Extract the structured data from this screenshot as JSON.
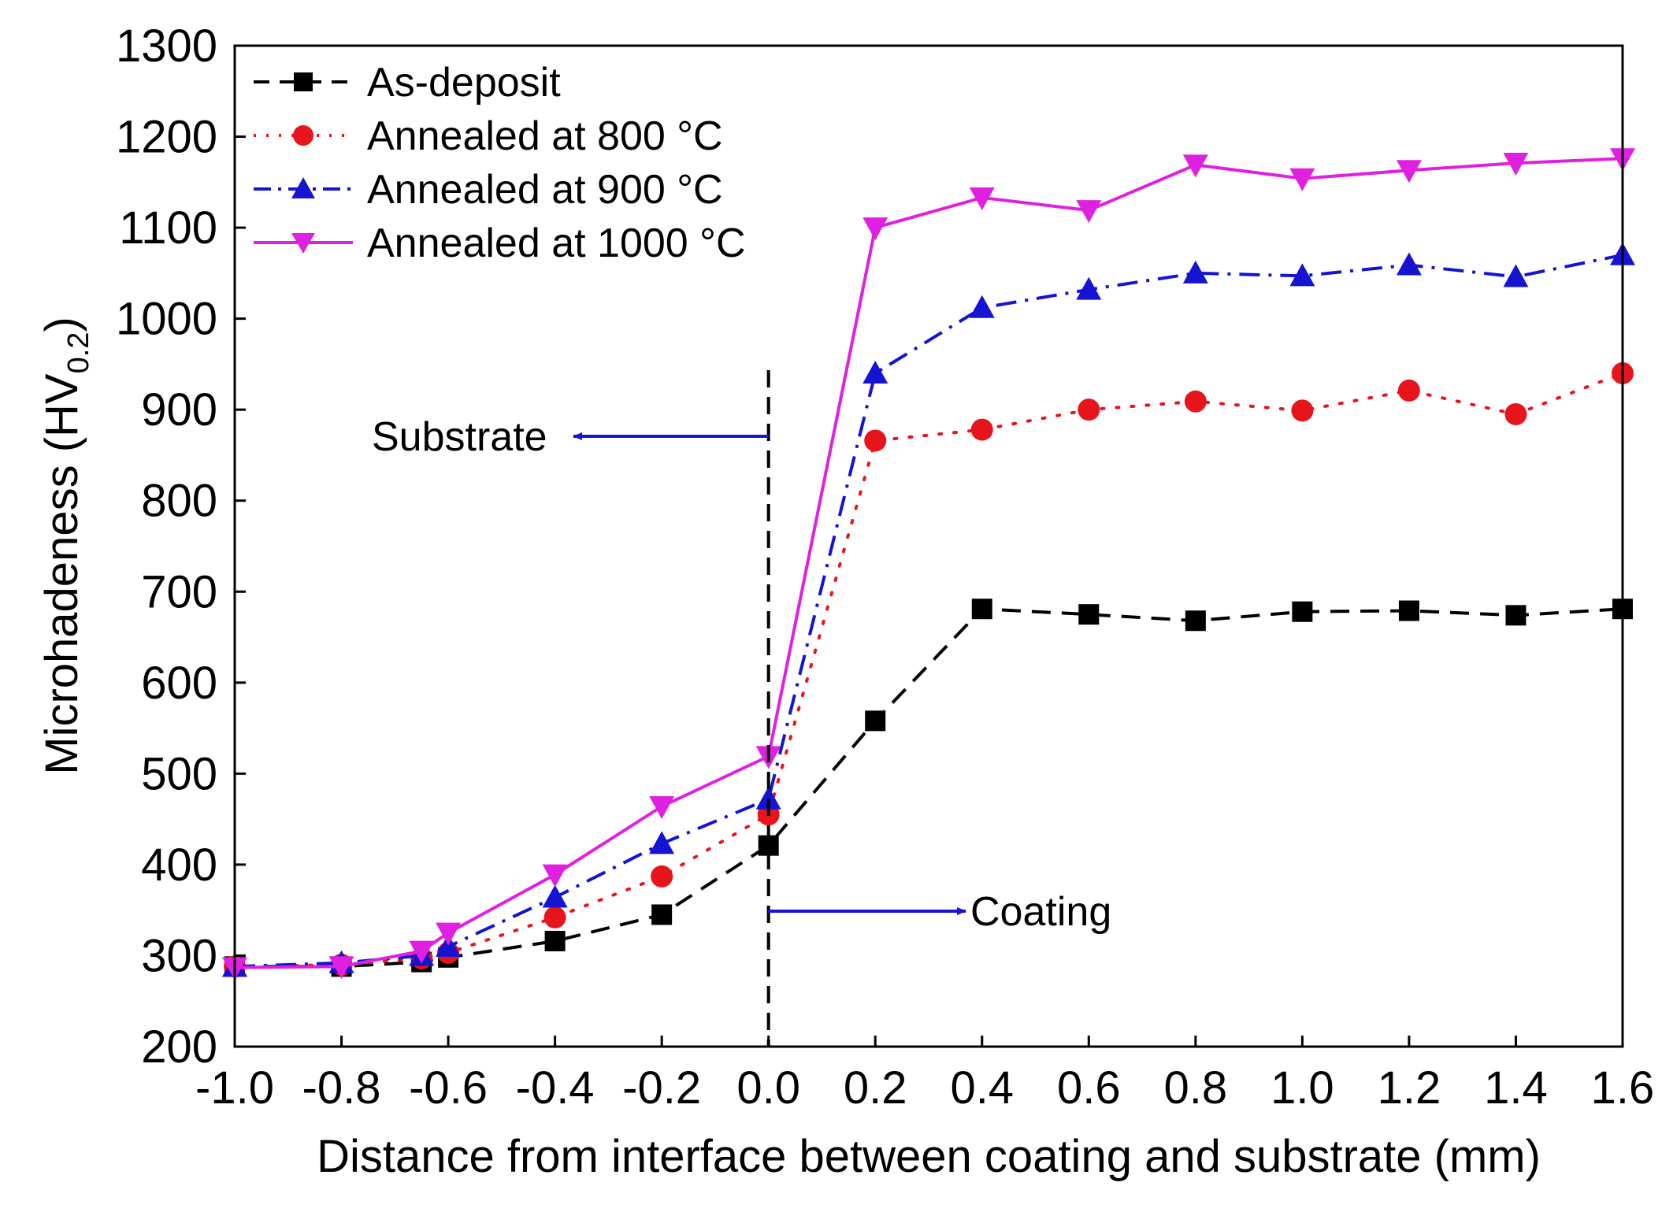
{
  "chart_data": {
    "type": "line",
    "title": "",
    "xlabel": "Distance from interface between coating and substrate (mm)",
    "ylabel": {
      "main": "Microhadeness (HV",
      "sub": "0.2",
      "close": ")"
    },
    "xlim": [
      -1.0,
      1.6
    ],
    "ylim": [
      200,
      1300
    ],
    "x_ticks": [
      -1.0,
      -0.8,
      -0.6,
      -0.4,
      -0.2,
      0.0,
      0.2,
      0.4,
      0.6,
      0.8,
      1.0,
      1.2,
      1.4,
      1.6
    ],
    "x_tick_labels": [
      "-1.0",
      "-0.8",
      "-0.6",
      "-0.4",
      "-0.2",
      "0.0",
      "0.2",
      "0.4",
      "0.6",
      "0.8",
      "1.0",
      "1.2",
      "1.4",
      "1.6"
    ],
    "y_ticks": [
      200,
      300,
      400,
      500,
      600,
      700,
      800,
      900,
      1000,
      1100,
      1200,
      1300
    ],
    "y_tick_labels": [
      "200",
      "300",
      "400",
      "500",
      "600",
      "700",
      "800",
      "900",
      "1000",
      "1100",
      "1200",
      "1300"
    ],
    "grid": false,
    "legend_position": "top-left",
    "series": [
      {
        "name": "As-deposit",
        "color": "#000000",
        "marker": "square",
        "line_style": "dash",
        "x": [
          -1.0,
          -0.8,
          -0.65,
          -0.6,
          -0.4,
          -0.2,
          0.0,
          0.2,
          0.4,
          0.6,
          0.8,
          1.0,
          1.2,
          1.4,
          1.6
        ],
        "y": [
          288,
          288,
          293,
          298,
          316,
          345,
          421,
          558,
          681,
          675,
          668,
          678,
          679,
          674,
          681
        ]
      },
      {
        "name": "Annealed at 800 °C",
        "color": "#e8141b",
        "marker": "circle",
        "line_style": "dot",
        "x": [
          -1.0,
          -0.8,
          -0.65,
          -0.6,
          -0.4,
          -0.2,
          0.0,
          0.2,
          0.4,
          0.6,
          0.8,
          1.0,
          1.2,
          1.4,
          1.6
        ],
        "y": [
          288,
          290,
          297,
          303,
          342,
          387,
          455,
          866,
          878,
          900,
          909,
          899,
          921,
          895,
          940
        ]
      },
      {
        "name": "Annealed at 900 °C",
        "color": "#1414d2",
        "marker": "triangle-up",
        "line_style": "dashdot",
        "x": [
          -1.0,
          -0.8,
          -0.65,
          -0.6,
          -0.4,
          -0.2,
          0.0,
          0.2,
          0.4,
          0.6,
          0.8,
          1.0,
          1.2,
          1.4,
          1.6
        ],
        "y": [
          288,
          292,
          300,
          310,
          364,
          423,
          472,
          940,
          1012,
          1032,
          1050,
          1047,
          1059,
          1046,
          1070
        ]
      },
      {
        "name": "Annealed at 1000 °C",
        "color": "#e020e0",
        "marker": "triangle-down",
        "line_style": "solid",
        "x": [
          -1.0,
          -0.8,
          -0.65,
          -0.6,
          -0.4,
          -0.2,
          0.0,
          0.2,
          0.4,
          0.6,
          0.8,
          1.0,
          1.2,
          1.4,
          1.6
        ],
        "y": [
          287,
          288,
          305,
          325,
          389,
          464,
          519,
          1100,
          1133,
          1119,
          1169,
          1154,
          1163,
          1171,
          1176
        ]
      }
    ],
    "annotations": [
      {
        "text": "Substrate",
        "arrow_direction": "left",
        "arrow_color": "#1414d2"
      },
      {
        "text": "Coating",
        "arrow_direction": "right",
        "arrow_color": "#1414d2"
      }
    ],
    "interface_line": {
      "x": 0.0,
      "style": "dashed",
      "color": "#000000"
    }
  }
}
